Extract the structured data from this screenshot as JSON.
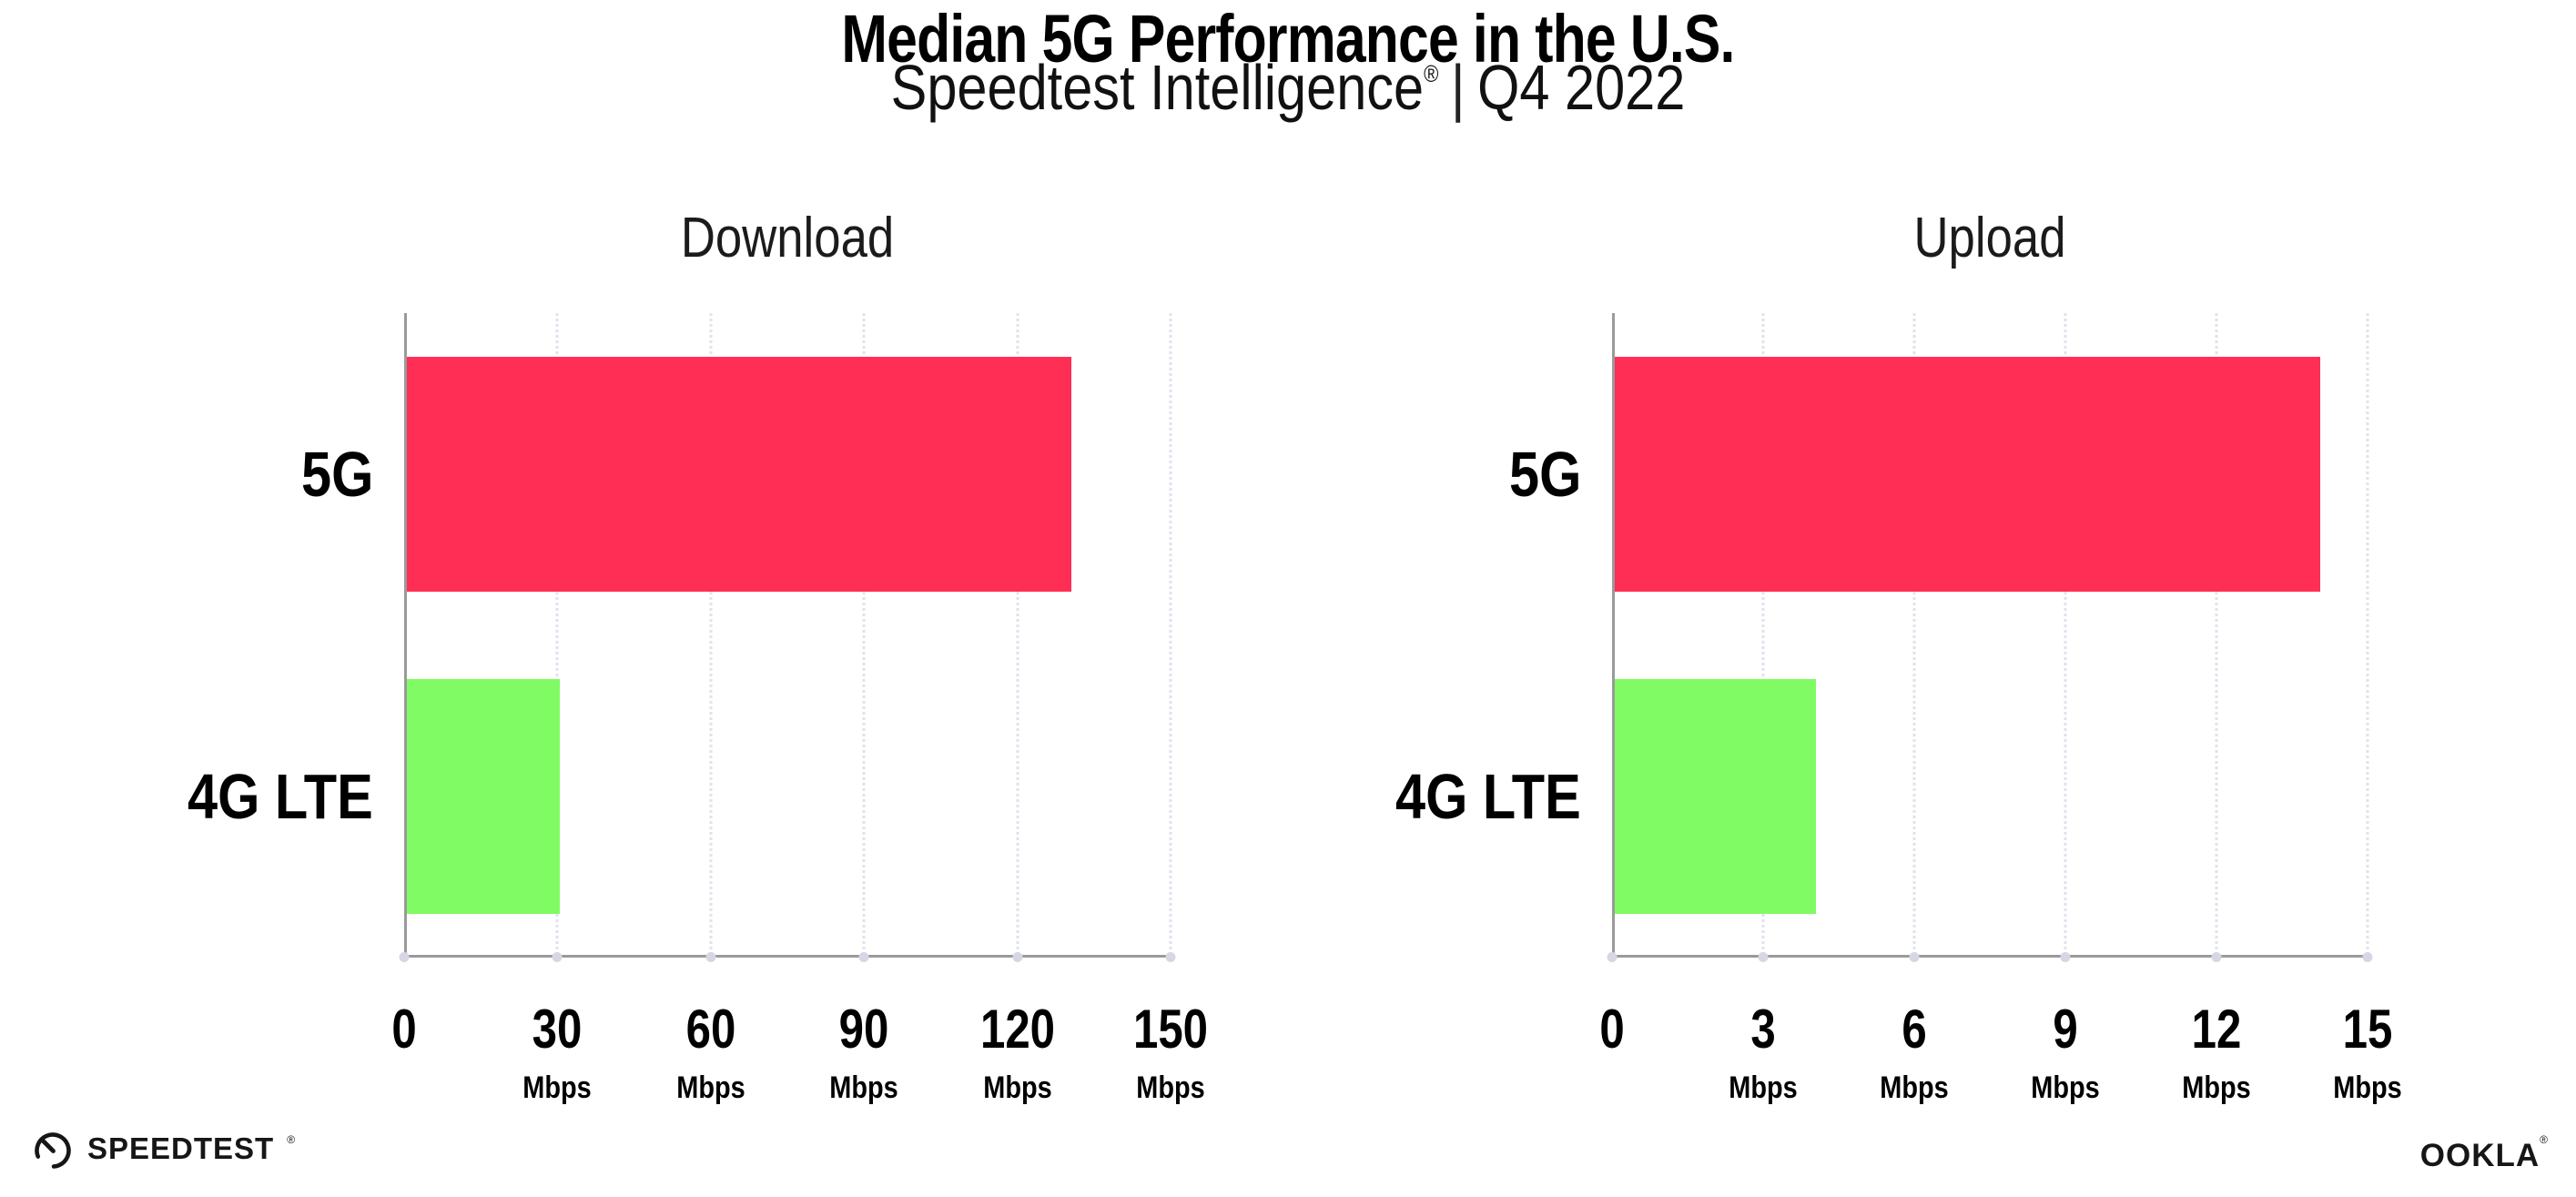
{
  "page": {
    "title": "Median 5G Performance in the U.S.",
    "subtitle_brand": "Speedtest Intelligence",
    "subtitle_reg_mark": "®",
    "subtitle_separator": "|",
    "subtitle_period": "Q4 2022"
  },
  "colors": {
    "bar_5g": "#FF2E55",
    "bar_4g_lte": "#80FB64",
    "axis": "#9A9A9A",
    "gridline": "#E1E2ED",
    "text": "#000000"
  },
  "chart_data": [
    {
      "type": "bar",
      "orientation": "horizontal",
      "title": "Download",
      "categories": [
        "5G",
        "4G LTE"
      ],
      "values": [
        130,
        30
      ],
      "unit": "Mbps",
      "xlabel": "",
      "ylabel": "",
      "xlim": [
        0,
        150
      ],
      "xticks": [
        0,
        30,
        60,
        90,
        120,
        150
      ],
      "grid": "vertical-dotted",
      "legend": "none",
      "bar_colors": [
        "#FF2E55",
        "#80FB64"
      ]
    },
    {
      "type": "bar",
      "orientation": "horizontal",
      "title": "Upload",
      "categories": [
        "5G",
        "4G LTE"
      ],
      "values": [
        14,
        4
      ],
      "unit": "Mbps",
      "xlabel": "",
      "ylabel": "",
      "xlim": [
        0,
        15
      ],
      "xticks": [
        0,
        3,
        6,
        9,
        12,
        15
      ],
      "grid": "vertical-dotted",
      "legend": "none",
      "bar_colors": [
        "#FF2E55",
        "#80FB64"
      ]
    }
  ],
  "footer": {
    "speedtest_logo_text": "SPEEDTEST",
    "speedtest_reg_mark": "®",
    "ookla_logo_text": "OOKLA",
    "ookla_reg_mark": "®"
  }
}
